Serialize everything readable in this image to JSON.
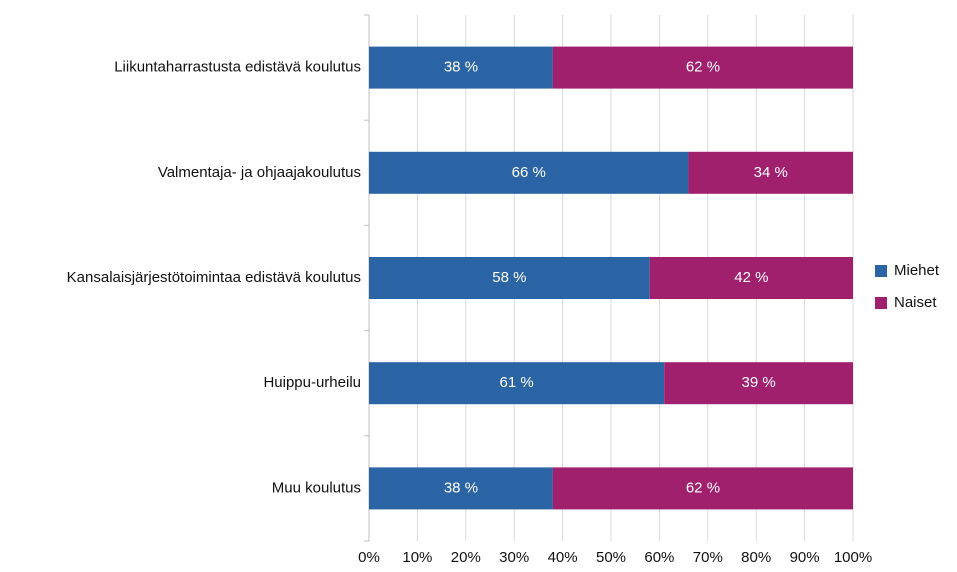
{
  "chart_data": {
    "type": "stacked_barh",
    "categories": [
      "Liikuntaharrastusta edistävä koulutus",
      "Valmentaja- ja ohjaajakoulutus",
      "Kansalaisjärjestötoimintaa edistävä koulutus",
      "Huippu-urheilu",
      "Muu koulutus"
    ],
    "series": [
      {
        "name": "Miehet",
        "color": "#2b64a4",
        "values": [
          38,
          66,
          58,
          61,
          38
        ],
        "value_labels": [
          "38 %",
          "66 %",
          "58 %",
          "61 %",
          "38 %"
        ]
      },
      {
        "name": "Naiset",
        "color": "#a0206e",
        "values": [
          62,
          34,
          42,
          39,
          62
        ],
        "value_labels": [
          "62 %",
          "34 %",
          "42 %",
          "39 %",
          "62 %"
        ]
      }
    ],
    "xlim": [
      0,
      100
    ],
    "xticks": [
      {
        "value": 0,
        "label": "0%"
      },
      {
        "value": 10,
        "label": "10%"
      },
      {
        "value": 20,
        "label": "20%"
      },
      {
        "value": 30,
        "label": "30%"
      },
      {
        "value": 40,
        "label": "40%"
      },
      {
        "value": 50,
        "label": "50%"
      },
      {
        "value": 60,
        "label": "60%"
      },
      {
        "value": 70,
        "label": "70%"
      },
      {
        "value": 80,
        "label": "80%"
      },
      {
        "value": 90,
        "label": "90%"
      },
      {
        "value": 100,
        "label": "100%"
      }
    ],
    "grid": true,
    "legend": "right"
  }
}
